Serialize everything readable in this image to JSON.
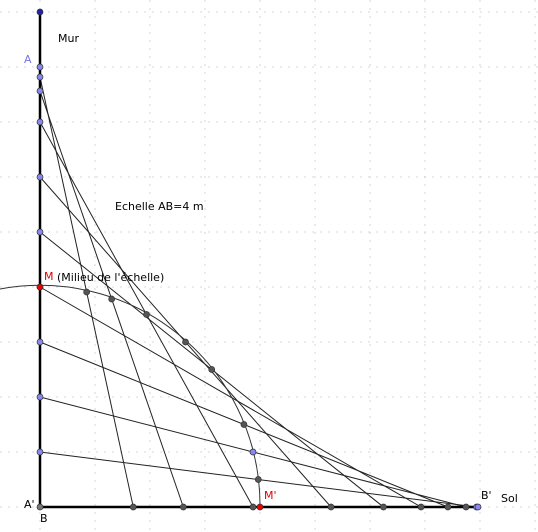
{
  "labels": {
    "wall": "Mur",
    "a": "A",
    "ladder": "Echelle AB=4 m",
    "m": "M",
    "m_note": "(Milieu de l'échelle)",
    "m_prime": "M'",
    "a_prime": "A'",
    "b": "B",
    "b_prime": "B'",
    "floor": "Sol"
  }
}
